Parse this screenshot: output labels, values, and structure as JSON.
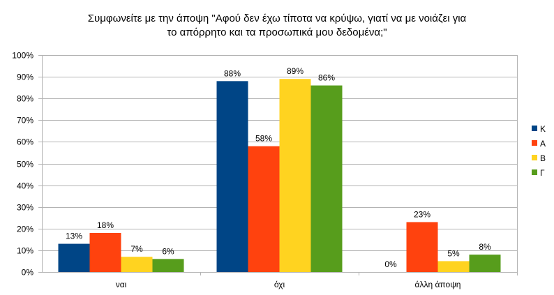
{
  "chart_data": {
    "type": "bar",
    "title_line1": "Συμφωνείτε με την άποψη \"Αφού δεν έχω τίποτα να κρύψω, γιατί να με νοιάζει για",
    "title_line2": "το απόρρητο και τα προσωπικά μου δεδομένα;\"",
    "categories": [
      "ναι",
      "όχι",
      "άλλη άποψη"
    ],
    "series": [
      {
        "name": "Κ",
        "color": "#004586",
        "values": [
          13,
          88,
          0
        ]
      },
      {
        "name": "Α",
        "color": "#ff420e",
        "values": [
          18,
          58,
          23
        ]
      },
      {
        "name": "Β",
        "color": "#ffd320",
        "values": [
          7,
          89,
          5
        ]
      },
      {
        "name": "Γ",
        "color": "#579d1c",
        "values": [
          6,
          86,
          8
        ]
      }
    ],
    "ylim": [
      0,
      100
    ],
    "yticks": [
      "0%",
      "10%",
      "20%",
      "30%",
      "40%",
      "50%",
      "60%",
      "70%",
      "80%",
      "90%",
      "100%"
    ],
    "value_suffix": "%",
    "grid": true,
    "legend_position": "right"
  }
}
